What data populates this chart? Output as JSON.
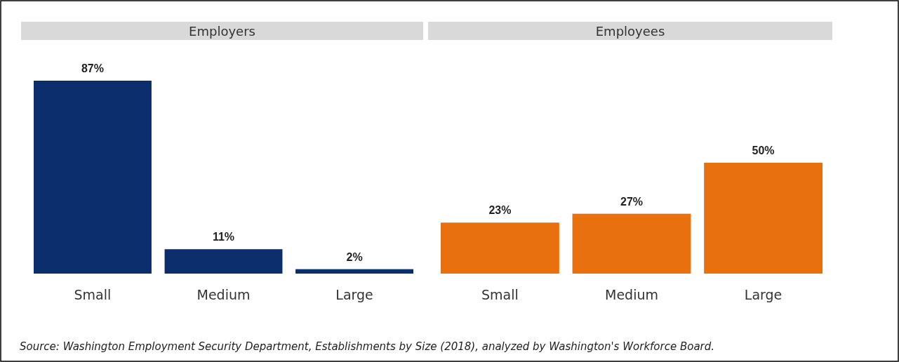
{
  "chart_data": [
    {
      "type": "bar",
      "title": "Employers",
      "categories": [
        "Small",
        "Medium",
        "Large"
      ],
      "values": [
        87,
        11,
        2
      ],
      "color": "#0c2d6b",
      "data_labels": true,
      "value_labels": [
        "87%",
        "11%",
        "2%"
      ]
    },
    {
      "type": "bar",
      "title": "Employees",
      "categories": [
        "Small",
        "Medium",
        "Large"
      ],
      "values": [
        23,
        27,
        50
      ],
      "color": "#e8700f",
      "data_labels": true,
      "value_labels": [
        "23%",
        "27%",
        "50%"
      ],
      "annotations": [
        "Source: Washington Employment Security Department, Establishments by Size (2018), analyzed by Washington's Workforce Board."
      ]
    }
  ]
}
